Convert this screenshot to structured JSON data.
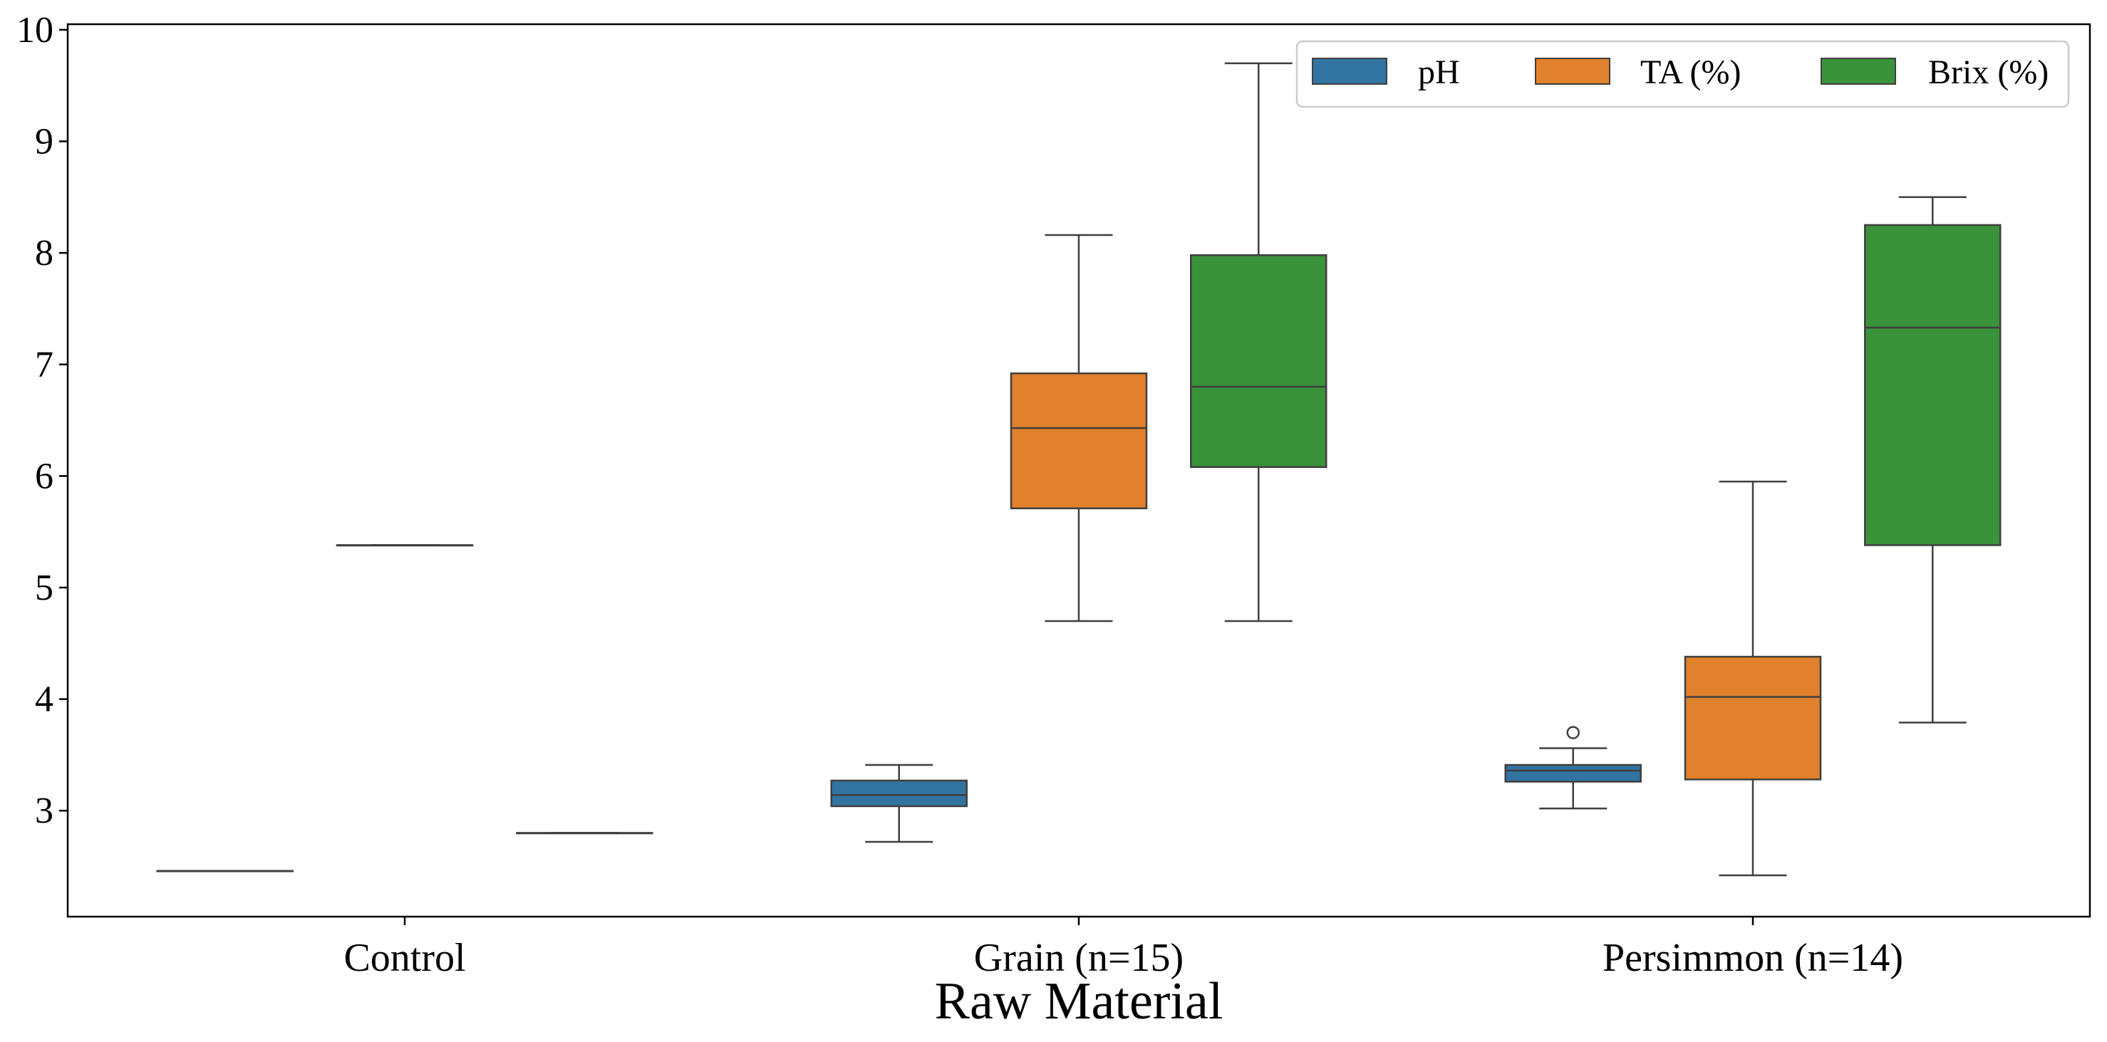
{
  "chart_data": {
    "type": "box",
    "xlabel": "Raw Material",
    "ylabel": "",
    "ylim": [
      2.05,
      10.05
    ],
    "yticks": [
      3,
      4,
      5,
      6,
      7,
      8,
      9,
      10
    ],
    "grid": false,
    "legend_position": "top-right",
    "categories": [
      "Control",
      "Grain (n=15)",
      "Persimmon (n=14)"
    ],
    "series": [
      {
        "name": "pH",
        "color": "#3274a1",
        "boxes": [
          {
            "whislo": 2.46,
            "q1": 2.46,
            "med": 2.46,
            "q3": 2.46,
            "whishi": 2.46,
            "fliers": []
          },
          {
            "whislo": 2.72,
            "q1": 3.04,
            "med": 3.14,
            "q3": 3.27,
            "whishi": 3.41,
            "fliers": []
          },
          {
            "whislo": 3.02,
            "q1": 3.26,
            "med": 3.36,
            "q3": 3.41,
            "whishi": 3.56,
            "fliers": [
              3.7
            ]
          }
        ]
      },
      {
        "name": "TA (%)",
        "color": "#e1812c",
        "boxes": [
          {
            "whislo": 5.38,
            "q1": 5.38,
            "med": 5.38,
            "q3": 5.38,
            "whishi": 5.38,
            "fliers": []
          },
          {
            "whislo": 4.7,
            "q1": 5.71,
            "med": 6.43,
            "q3": 6.92,
            "whishi": 8.16,
            "fliers": []
          },
          {
            "whislo": 2.42,
            "q1": 3.28,
            "med": 4.02,
            "q3": 4.38,
            "whishi": 5.95,
            "fliers": []
          }
        ]
      },
      {
        "name": "Brix (%)",
        "color": "#3a923a",
        "boxes": [
          {
            "whislo": 2.8,
            "q1": 2.8,
            "med": 2.8,
            "q3": 2.8,
            "whishi": 2.8,
            "fliers": []
          },
          {
            "whislo": 4.7,
            "q1": 6.08,
            "med": 6.8,
            "q3": 7.98,
            "whishi": 9.7,
            "fliers": []
          },
          {
            "whislo": 3.79,
            "q1": 5.38,
            "med": 7.33,
            "q3": 8.25,
            "whishi": 8.5,
            "fliers": []
          }
        ]
      }
    ]
  }
}
